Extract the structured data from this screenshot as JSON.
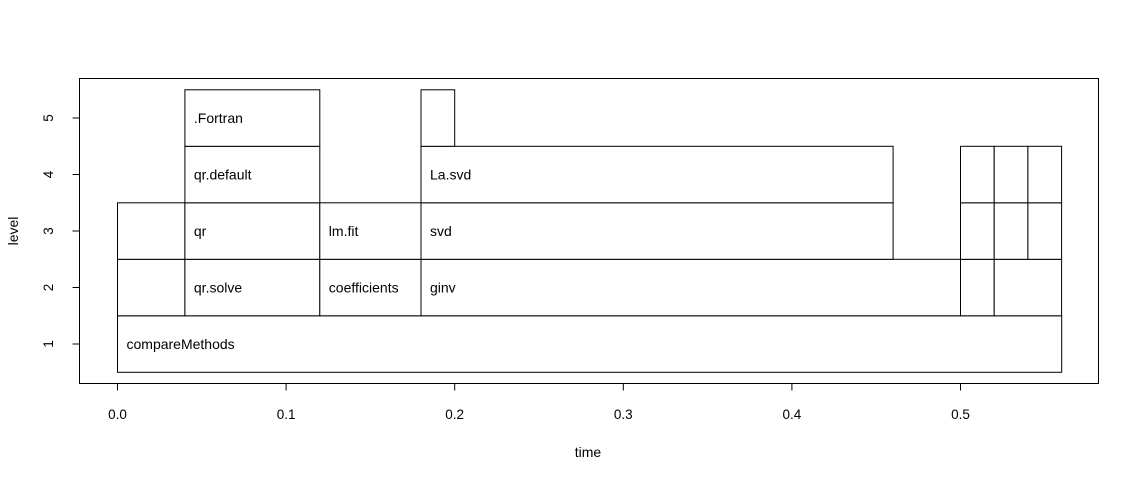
{
  "chart_data": {
    "type": "flame-graph",
    "xlabel": "time",
    "ylabel": "level",
    "xlim": [
      0.0,
      0.56
    ],
    "ylim": [
      0.5,
      5.5
    ],
    "x_ticks": [
      "0.0",
      "0.1",
      "0.2",
      "0.3",
      "0.4",
      "0.5"
    ],
    "y_ticks": [
      "1",
      "2",
      "3",
      "4",
      "5"
    ],
    "grid": false,
    "blocks": [
      {
        "level": 1,
        "start": 0.0,
        "end": 0.56,
        "label": "compareMethods"
      },
      {
        "level": 2,
        "start": 0.0,
        "end": 0.04,
        "label": ""
      },
      {
        "level": 2,
        "start": 0.04,
        "end": 0.12,
        "label": "qr.solve"
      },
      {
        "level": 2,
        "start": 0.12,
        "end": 0.18,
        "label": "coefficients"
      },
      {
        "level": 2,
        "start": 0.18,
        "end": 0.5,
        "label": "ginv"
      },
      {
        "level": 2,
        "start": 0.5,
        "end": 0.52,
        "label": ""
      },
      {
        "level": 2,
        "start": 0.52,
        "end": 0.56,
        "label": ""
      },
      {
        "level": 3,
        "start": 0.0,
        "end": 0.04,
        "label": ""
      },
      {
        "level": 3,
        "start": 0.04,
        "end": 0.12,
        "label": "qr"
      },
      {
        "level": 3,
        "start": 0.12,
        "end": 0.18,
        "label": "lm.fit"
      },
      {
        "level": 3,
        "start": 0.18,
        "end": 0.46,
        "label": "svd"
      },
      {
        "level": 3,
        "start": 0.5,
        "end": 0.52,
        "label": ""
      },
      {
        "level": 3,
        "start": 0.52,
        "end": 0.54,
        "label": ""
      },
      {
        "level": 3,
        "start": 0.54,
        "end": 0.56,
        "label": ""
      },
      {
        "level": 4,
        "start": 0.04,
        "end": 0.12,
        "label": "qr.default"
      },
      {
        "level": 4,
        "start": 0.18,
        "end": 0.46,
        "label": "La.svd"
      },
      {
        "level": 4,
        "start": 0.5,
        "end": 0.52,
        "label": ""
      },
      {
        "level": 4,
        "start": 0.52,
        "end": 0.54,
        "label": ""
      },
      {
        "level": 4,
        "start": 0.54,
        "end": 0.56,
        "label": ""
      },
      {
        "level": 5,
        "start": 0.04,
        "end": 0.12,
        "label": ".Fortran"
      },
      {
        "level": 5,
        "start": 0.18,
        "end": 0.2,
        "label": ""
      }
    ]
  }
}
